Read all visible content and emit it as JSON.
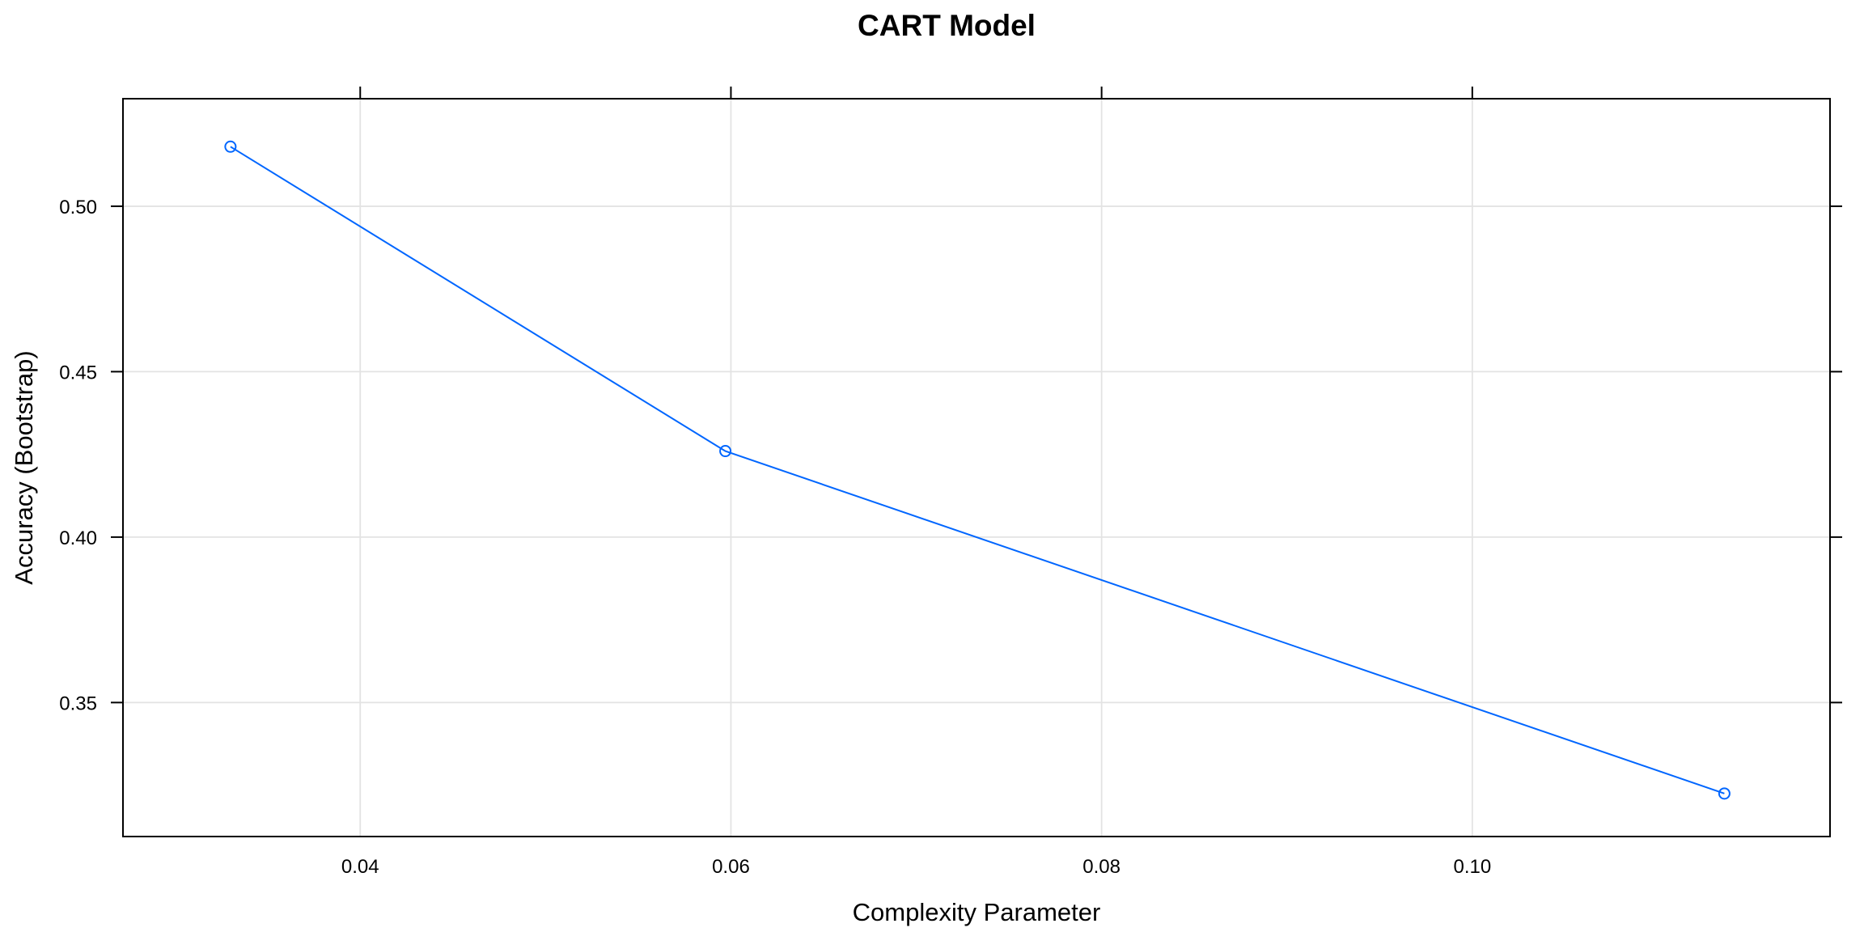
{
  "chart_data": {
    "type": "line",
    "title": "CART Model",
    "xlabel": "Complexity Parameter",
    "ylabel": "Accuracy (Bootstrap)",
    "x_ticks": [
      0.04,
      0.06,
      0.08,
      0.1
    ],
    "x_tick_labels": [
      "0.04",
      "0.06",
      "0.08",
      "0.10"
    ],
    "y_ticks": [
      0.35,
      0.4,
      0.45,
      0.5
    ],
    "y_tick_labels": [
      "0.35",
      "0.40",
      "0.45",
      "0.50"
    ],
    "xlim": [
      0.0272,
      0.1193
    ],
    "ylim": [
      0.3095,
      0.5325
    ],
    "grid": true,
    "series": [
      {
        "color": "#0066ff",
        "x": [
          0.033,
          0.0597,
          0.1136
        ],
        "y": [
          0.518,
          0.426,
          0.3225
        ]
      }
    ]
  }
}
